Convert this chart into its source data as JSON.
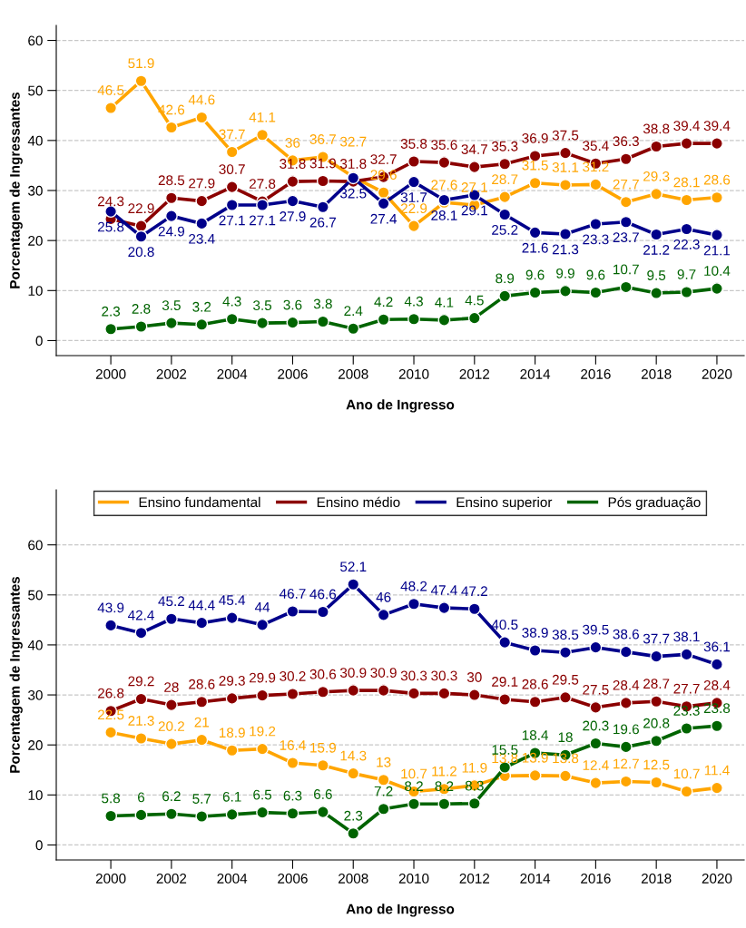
{
  "chart_data": [
    {
      "type": "line",
      "xlabel": "Ano de Ingresso",
      "ylabel": "Porcentagem de Ingressantes",
      "x": [
        2000,
        2001,
        2002,
        2003,
        2004,
        2005,
        2006,
        2007,
        2008,
        2009,
        2010,
        2011,
        2012,
        2013,
        2014,
        2015,
        2016,
        2017,
        2018,
        2019,
        2020
      ],
      "series": [
        {
          "color": "#ffa500",
          "values": [
            46.5,
            51.9,
            42.6,
            44.6,
            37.7,
            41.1,
            36,
            36.7,
            32.7,
            29.6,
            22.9,
            27.6,
            27.1,
            28.7,
            31.5,
            31.1,
            31.2,
            27.7,
            29.3,
            28.1,
            28.6
          ]
        },
        {
          "color": "#8b0000",
          "values": [
            24.3,
            22.9,
            28.5,
            27.9,
            30.7,
            27.8,
            31.8,
            31.9,
            31.8,
            32.7,
            35.8,
            35.6,
            34.7,
            35.3,
            36.9,
            37.5,
            35.4,
            36.3,
            38.8,
            39.4,
            39.4
          ]
        },
        {
          "color": "#00008b",
          "values": [
            25.8,
            20.8,
            24.9,
            23.4,
            27.1,
            27.1,
            27.9,
            26.7,
            32.5,
            27.4,
            31.7,
            28.1,
            29.1,
            25.2,
            21.6,
            21.3,
            23.3,
            23.7,
            21.2,
            22.3,
            21.1
          ]
        },
        {
          "color": "#006400",
          "values": [
            2.3,
            2.8,
            3.5,
            3.2,
            4.3,
            3.5,
            3.6,
            3.8,
            2.4,
            4.2,
            4.3,
            4.1,
            4.5,
            8.9,
            9.6,
            9.9,
            9.6,
            10.7,
            9.5,
            9.7,
            10.4
          ]
        }
      ],
      "xlim": [
        1998.2,
        2020.9
      ],
      "xticks": [
        2000,
        2002,
        2004,
        2006,
        2008,
        2010,
        2012,
        2014,
        2016,
        2018,
        2020
      ],
      "ylim": [
        -3,
        63
      ],
      "yticks": [
        0,
        10,
        20,
        30,
        40,
        50,
        60
      ],
      "data_labels": true,
      "grid": "y",
      "legend": false,
      "marker": "circle",
      "line_style": "solid"
    },
    {
      "type": "line",
      "xlabel": "Ano de Ingresso",
      "ylabel": "Porcentagem de Ingressantes",
      "x": [
        2000,
        2001,
        2002,
        2003,
        2004,
        2005,
        2006,
        2007,
        2008,
        2009,
        2010,
        2011,
        2012,
        2013,
        2014,
        2015,
        2016,
        2017,
        2018,
        2019,
        2020
      ],
      "series": [
        {
          "name": "Ensino fundamental",
          "color": "#ffa500",
          "values": [
            22.5,
            21.3,
            20.2,
            21,
            18.9,
            19.2,
            16.4,
            15.9,
            14.3,
            13,
            10.7,
            11.2,
            11.9,
            13.8,
            13.9,
            13.8,
            12.4,
            12.7,
            12.5,
            10.7,
            11.4
          ]
        },
        {
          "name": "Ensino médio",
          "color": "#8b0000",
          "values": [
            26.8,
            29.2,
            28,
            28.6,
            29.3,
            29.9,
            30.2,
            30.6,
            30.9,
            30.9,
            30.3,
            30.3,
            30,
            29.1,
            28.6,
            29.5,
            27.5,
            28.4,
            28.7,
            27.7,
            28.4
          ]
        },
        {
          "name": "Ensino superior",
          "color": "#00008b",
          "values": [
            43.9,
            42.4,
            45.2,
            44.4,
            45.4,
            44,
            46.7,
            46.6,
            52.1,
            46,
            48.2,
            47.4,
            47.2,
            40.5,
            38.9,
            38.5,
            39.5,
            38.6,
            37.7,
            38.1,
            36.1
          ]
        },
        {
          "name": "Pós graduação",
          "color": "#006400",
          "values": [
            5.8,
            6,
            6.2,
            5.7,
            6.1,
            6.5,
            6.3,
            6.6,
            2.3,
            7.2,
            8.2,
            8.2,
            8.3,
            15.5,
            18.4,
            18,
            20.3,
            19.6,
            20.8,
            23.3,
            23.8
          ]
        }
      ],
      "xlim": [
        1998.2,
        2020.9
      ],
      "xticks": [
        2000,
        2002,
        2004,
        2006,
        2008,
        2010,
        2012,
        2014,
        2016,
        2018,
        2020
      ],
      "ylim": [
        -3,
        71
      ],
      "yticks": [
        0,
        10,
        20,
        30,
        40,
        50,
        60
      ],
      "data_labels": true,
      "grid": "y",
      "legend": "top",
      "marker": "circle",
      "line_style": "solid"
    }
  ]
}
